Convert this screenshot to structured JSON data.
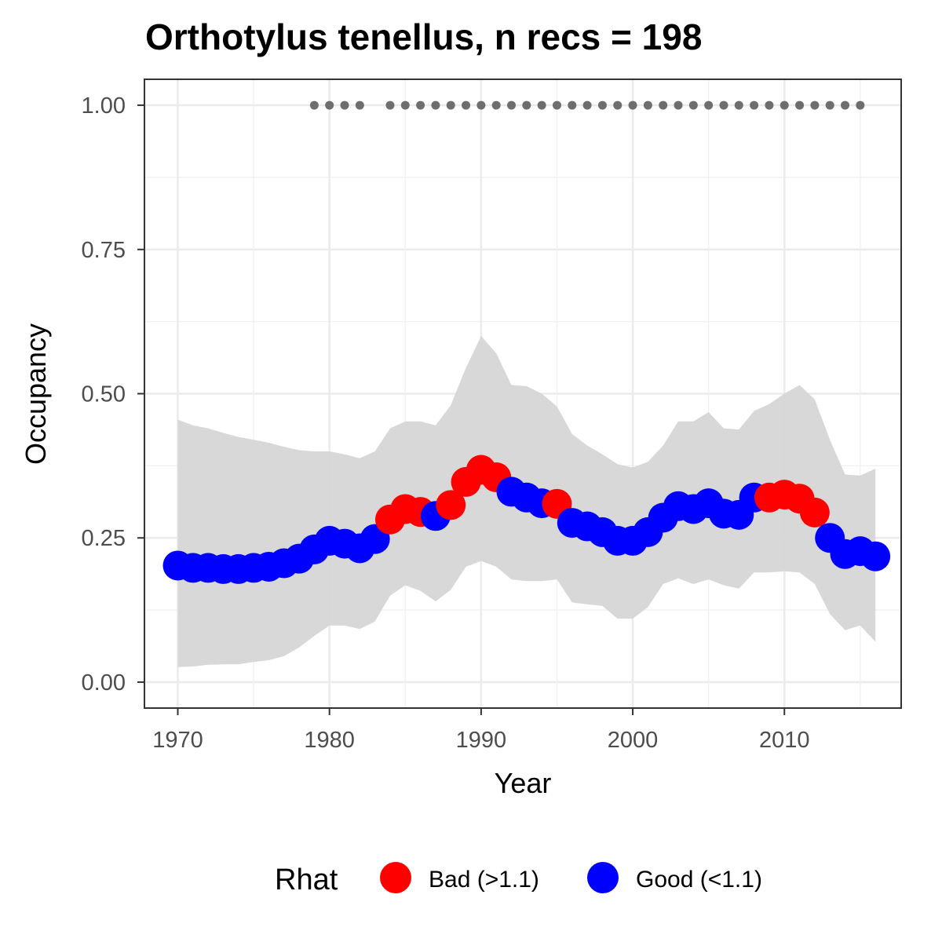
{
  "chart_data": {
    "type": "line",
    "title": "Orthotylus tenellus, n recs = 198",
    "xlabel": "Year",
    "ylabel": "Occupancy",
    "xlim": [
      1967.8,
      2017.7
    ],
    "ylim": [
      -0.045,
      1.045
    ],
    "x_ticks": [
      1970,
      1980,
      1990,
      2000,
      2010
    ],
    "x_tick_labels": [
      "1970",
      "1980",
      "1990",
      "2000",
      "2010"
    ],
    "y_ticks": [
      0,
      0.25,
      0.5,
      0.75,
      1.0
    ],
    "y_tick_labels": [
      "0.00",
      "0.25",
      "0.50",
      "0.75",
      "1.00"
    ],
    "grid": true,
    "legend": {
      "title": "Rhat",
      "position": "bottom",
      "items": [
        {
          "label": "Bad (>1.1)",
          "color": "#ff0000"
        },
        {
          "label": "Good (<1.1)",
          "color": "#0000ff"
        }
      ]
    },
    "colors": {
      "bad": "#ff0000",
      "good": "#0000ff",
      "ribbon": "#d6d6d6",
      "records": "#6e6e6e"
    },
    "years": [
      1970,
      1971,
      1972,
      1973,
      1974,
      1975,
      1976,
      1977,
      1978,
      1979,
      1980,
      1981,
      1982,
      1983,
      1984,
      1985,
      1986,
      1987,
      1988,
      1989,
      1990,
      1991,
      1992,
      1993,
      1994,
      1995,
      1996,
      1997,
      1998,
      1999,
      2000,
      2001,
      2002,
      2003,
      2004,
      2005,
      2006,
      2007,
      2008,
      2009,
      2010,
      2011,
      2012,
      2013,
      2014,
      2015,
      2016
    ],
    "occupancy": [
      0.202,
      0.198,
      0.198,
      0.196,
      0.196,
      0.198,
      0.2,
      0.206,
      0.214,
      0.23,
      0.245,
      0.24,
      0.232,
      0.248,
      0.282,
      0.3,
      0.295,
      0.288,
      0.307,
      0.347,
      0.368,
      0.355,
      0.33,
      0.32,
      0.31,
      0.309,
      0.276,
      0.27,
      0.26,
      0.245,
      0.245,
      0.26,
      0.285,
      0.305,
      0.3,
      0.31,
      0.292,
      0.29,
      0.32,
      0.32,
      0.325,
      0.318,
      0.294,
      0.25,
      0.222,
      0.227,
      0.218
    ],
    "rhat": [
      "good",
      "good",
      "good",
      "good",
      "good",
      "good",
      "good",
      "good",
      "good",
      "good",
      "good",
      "good",
      "good",
      "good",
      "bad",
      "bad",
      "bad",
      "good",
      "bad",
      "bad",
      "bad",
      "bad",
      "good",
      "good",
      "good",
      "bad",
      "good",
      "good",
      "good",
      "good",
      "good",
      "good",
      "good",
      "good",
      "good",
      "good",
      "good",
      "good",
      "good",
      "bad",
      "bad",
      "bad",
      "bad",
      "good",
      "good",
      "good",
      "good"
    ],
    "lower": [
      0.026,
      0.027,
      0.03,
      0.031,
      0.031,
      0.035,
      0.038,
      0.045,
      0.06,
      0.08,
      0.098,
      0.098,
      0.092,
      0.105,
      0.15,
      0.168,
      0.158,
      0.14,
      0.16,
      0.2,
      0.21,
      0.2,
      0.178,
      0.175,
      0.175,
      0.178,
      0.138,
      0.135,
      0.132,
      0.11,
      0.11,
      0.13,
      0.17,
      0.18,
      0.17,
      0.178,
      0.168,
      0.162,
      0.19,
      0.19,
      0.192,
      0.19,
      0.17,
      0.118,
      0.09,
      0.098,
      0.07
    ],
    "upper": [
      0.455,
      0.445,
      0.44,
      0.432,
      0.425,
      0.42,
      0.415,
      0.408,
      0.402,
      0.4,
      0.4,
      0.395,
      0.388,
      0.4,
      0.44,
      0.452,
      0.452,
      0.445,
      0.48,
      0.545,
      0.6,
      0.57,
      0.515,
      0.513,
      0.5,
      0.478,
      0.43,
      0.41,
      0.395,
      0.378,
      0.372,
      0.382,
      0.41,
      0.452,
      0.452,
      0.468,
      0.44,
      0.438,
      0.47,
      0.482,
      0.5,
      0.515,
      0.49,
      0.42,
      0.36,
      0.358,
      0.37
    ],
    "record_years": [
      1979,
      1980,
      1981,
      1982,
      1984,
      1985,
      1986,
      1987,
      1988,
      1989,
      1990,
      1991,
      1992,
      1993,
      1994,
      1995,
      1996,
      1997,
      1998,
      1999,
      2000,
      2001,
      2002,
      2003,
      2004,
      2005,
      2006,
      2007,
      2008,
      2009,
      2010,
      2011,
      2012,
      2013,
      2014,
      2015
    ],
    "record_value": 1.0
  }
}
